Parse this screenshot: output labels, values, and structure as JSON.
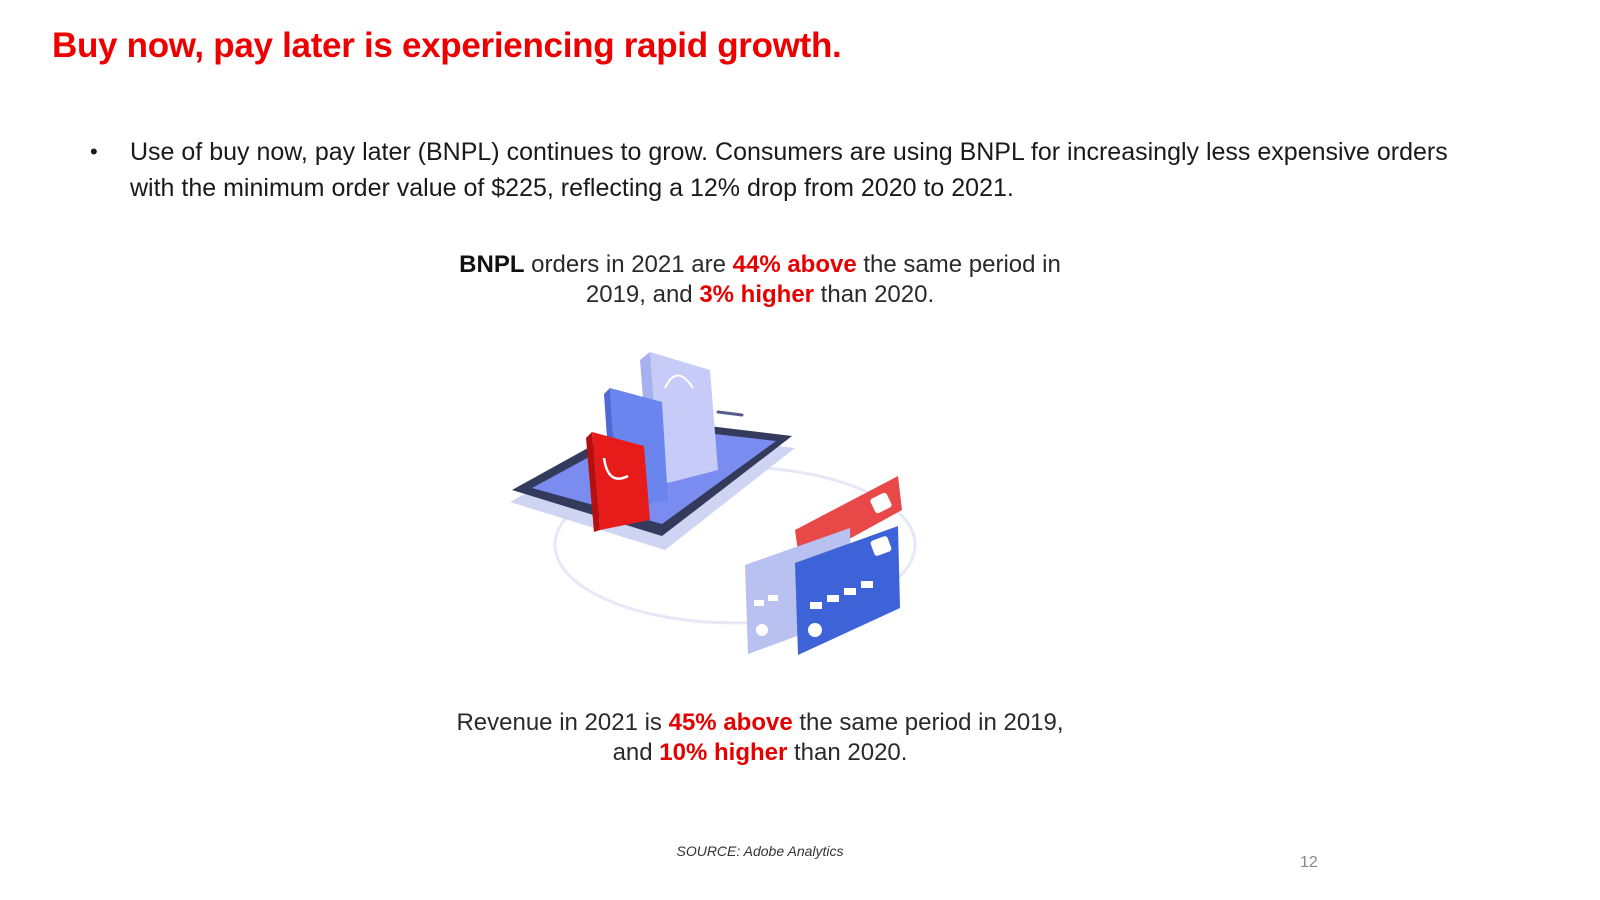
{
  "slide": {
    "title": "Buy now, pay later is experiencing rapid growth.",
    "bullet": {
      "marker": "•",
      "text": "Use of buy now, pay later (BNPL) continues to grow.  Consumers are using BNPL for increasingly less expensive orders with the minimum order value of $225, reflecting a 12% drop from 2020 to 2021."
    },
    "orders_stat": {
      "bnpl": "BNPL",
      "part1": " orders in 2021 are ",
      "highlight1": "44% above",
      "part2": " the same period in 2019, and ",
      "highlight2": "3% higher",
      "part3": " than 2020."
    },
    "revenue_stat": {
      "part1": "Revenue in 2021 is ",
      "highlight1": "45% above",
      "part2": " the same period in 2019, and ",
      "highlight2": "10% higher",
      "part3": " than 2020."
    },
    "source": "SOURCE: Adobe Analytics",
    "page_number": "12"
  },
  "colors": {
    "accent_red": "#ee0000",
    "text_dark": "#1a1a1a"
  },
  "icons": {
    "illustration": "phone-shopping-bags-credit-cards-illustration"
  }
}
